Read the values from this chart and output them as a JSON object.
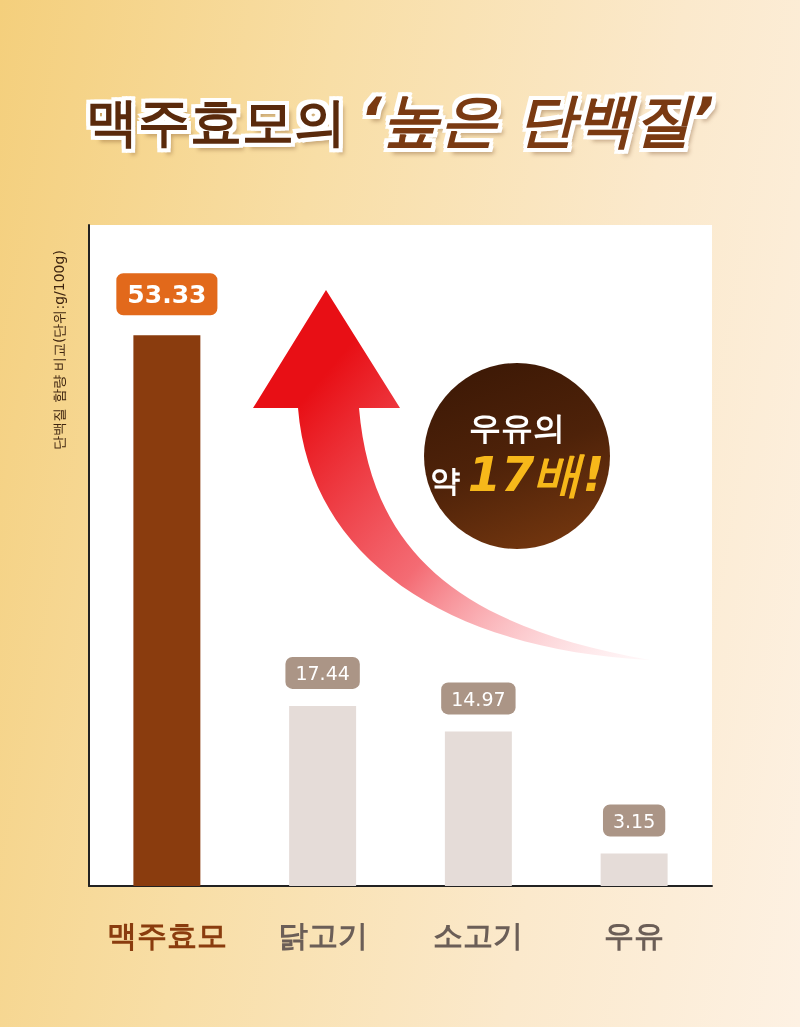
{
  "chart_data": {
    "type": "bar",
    "title": "맥주효모의 ‘높은 단백질’",
    "ylabel": "단백질 함량 비교(단위:g/100g)",
    "categories": [
      "맥주효모",
      "닭고기",
      "소고기",
      "우유"
    ],
    "values": [
      53.33,
      17.44,
      14.97,
      3.15
    ],
    "colors": [
      "#8a3c0e",
      "#e5dcd8",
      "#e5dcd8",
      "#e5dcd8"
    ],
    "ylim": [
      0,
      64
    ],
    "data_labels": true,
    "grid": false,
    "tick_labels": "x",
    "annotations": [
      "우유의 약 17배!"
    ]
  }
}
